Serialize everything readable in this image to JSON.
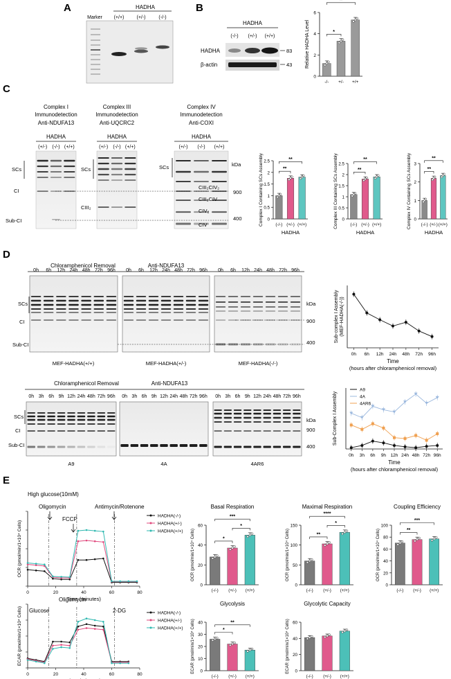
{
  "panels": {
    "A": {
      "letter": "A",
      "group": "HADHA",
      "marker": "Marker",
      "lanes": [
        "(+/+)",
        "(+/-)",
        "(-/-)"
      ]
    },
    "B": {
      "letter": "B",
      "group": "HADHA",
      "lanes": [
        "(-/-)",
        "(+/-)",
        "(+/+)"
      ],
      "rows": [
        "HADHA",
        "β-actin"
      ],
      "kda": [
        "83",
        "43"
      ],
      "chart": {
        "type": "bar",
        "ylabel": "Relative HADHA Level",
        "categories": [
          "-/-",
          "+/-",
          "+/+"
        ],
        "values": [
          1.2,
          3.3,
          5.3
        ],
        "ylim": [
          0,
          6
        ],
        "yticks": [
          "0",
          "2",
          "4",
          "6"
        ],
        "sig": [
          "*",
          "**"
        ],
        "colors": [
          "#9a9a9a",
          "#9a9a9a",
          "#9a9a9a"
        ]
      }
    },
    "C": {
      "letter": "C",
      "blots": [
        {
          "title1": "Complex I",
          "title2": "Immunodetection",
          "antibody": "Anti-NDUFA13",
          "group": "HADHA",
          "lanes": [
            "(+/-)",
            "(-/-)",
            "(+/+)"
          ]
        },
        {
          "title1": "Complex III",
          "title2": "Immunodetection",
          "antibody": "Anti-UQCRC2",
          "group": "HADHA",
          "lanes": [
            "(+/-)",
            "(-/-)",
            "(+/+)"
          ]
        },
        {
          "title1": "Complex IV",
          "title2": "Immunodetection",
          "antibody": "Anti-COXI",
          "group": "HADHA",
          "lanes": [
            "(+/-)",
            "(-/-)",
            "(+/+)"
          ]
        }
      ],
      "band_labels": {
        "scs": "SCs",
        "ci": "CI",
        "subci": "Sub-CI",
        "ciii2": "CIII₂",
        "ciii2civ2": "CIII₂CIV₂",
        "ciii2civ": "CIII₂CIV",
        "civ2": "CIV₂",
        "civ": "CIV"
      },
      "kda": {
        "unit": "kDa",
        "m900": "900",
        "m400": "400"
      },
      "charts": [
        {
          "type": "bar",
          "ylabel": "Complex I Containing SCs Assembly",
          "xlabel": "HADHA",
          "categories": [
            "(-/-)",
            "(+/-)",
            "(+/+)"
          ],
          "values": [
            1.0,
            1.75,
            1.8
          ],
          "ylim": [
            0,
            2.5
          ],
          "yticks": [
            "0",
            "0.5",
            "1",
            "1.5",
            "2",
            "2.5"
          ],
          "sig": [
            "**",
            "**"
          ],
          "colors": [
            "#8a8a8a",
            "#e05a8c",
            "#5ec6c0"
          ]
        },
        {
          "type": "bar",
          "ylabel": "Complex III Containing SCs Assembly",
          "xlabel": "HADHA",
          "categories": [
            "(-/-)",
            "(+/-)",
            "(+/+)"
          ],
          "values": [
            1.1,
            1.8,
            1.9
          ],
          "ylim": [
            0,
            2.5
          ],
          "yticks": [
            "0",
            "0.5",
            "1",
            "1.5",
            "2",
            "2.5"
          ],
          "sig": [
            "**",
            "**"
          ],
          "colors": [
            "#8a8a8a",
            "#e05a8c",
            "#5ec6c0"
          ]
        },
        {
          "type": "bar",
          "ylabel": "Complex IV Containing SCs Assembly",
          "xlabel": "HADHA",
          "categories": [
            "(-/-)",
            "(+/-)",
            "(+/+)"
          ],
          "values": [
            1.0,
            2.2,
            2.35
          ],
          "ylim": [
            0,
            3
          ],
          "yticks": [
            "0",
            "1",
            "2",
            "3"
          ],
          "sig": [
            "**",
            "**"
          ],
          "colors": [
            "#8a8a8a",
            "#e05a8c",
            "#5ec6c0"
          ]
        }
      ]
    },
    "D": {
      "letter": "D",
      "removal": "Chloramphenicol Removal",
      "antibody": "Anti-NDUFA13",
      "times1": [
        "0h",
        "6h",
        "12h",
        "24h",
        "48h",
        "72h",
        "96h"
      ],
      "times2": [
        "0h",
        "3h",
        "6h",
        "9h",
        "12h",
        "24h",
        "48h",
        "72h",
        "96h"
      ],
      "labels1": [
        "MEF-HADHA(+/+)",
        "MEF-HADHA(+/-)",
        "MEF-HADHA(-/-)"
      ],
      "labels2": [
        "A9",
        "4A",
        "4AR6"
      ],
      "band_labels": {
        "scs": "SCs",
        "ci": "CI",
        "subci": "Sub-CI"
      },
      "kda": {
        "unit": "kDa",
        "m900": "900",
        "m400": "400"
      },
      "chart1": {
        "type": "line",
        "ylabel": "Sub-complex I Assembly (MEF-HADHA(-/-))",
        "xlabel": "Time",
        "xlabel2": "(hours after chloramphenicol removal)",
        "categories": [
          "0h",
          "6h",
          "12h",
          "24h",
          "48h",
          "72h",
          "96h"
        ],
        "values": [
          8.6,
          5.6,
          4.5,
          3.5,
          4.1,
          2.7,
          1.8
        ],
        "ylim": [
          0,
          10
        ]
      },
      "chart2": {
        "type": "line",
        "ylabel": "Sub-Complex I Assembly",
        "xlabel": "Time",
        "xlabel2": "(hours after chloramphenicol removal)",
        "categories": [
          "0h",
          "3h",
          "6h",
          "9h",
          "12h",
          "24h",
          "48h",
          "72h",
          "96h"
        ],
        "ylim": [
          0,
          14
        ],
        "series": [
          {
            "name": "A9",
            "color": "#111111",
            "values": [
              0.3,
              0.8,
              1.8,
              1.4,
              0.8,
              0.5,
              0.3,
              0.6,
              0.8
            ]
          },
          {
            "name": "4A",
            "color": "#9bb8de",
            "values": [
              8.2,
              7.2,
              9.8,
              9.0,
              8.5,
              10.8,
              12.6,
              10.5,
              11.8
            ]
          },
          {
            "name": "4AR6",
            "color": "#f0a050",
            "values": [
              5.5,
              4.5,
              5.8,
              4.8,
              2.6,
              2.4,
              3.1,
              2.0,
              3.5
            ]
          }
        ]
      }
    },
    "E": {
      "letter": "E",
      "condition": "High glucose(10mM)",
      "ocr_trace": {
        "type": "line",
        "ylabel": "OCR (pmol/min/1×10⁴ Cells)",
        "xlabel": "Time (minutes)",
        "xticks": [
          "0",
          "20",
          "40",
          "60",
          "80"
        ],
        "xlim": [
          0,
          80
        ],
        "yticks": [
          "0",
          "50",
          "100",
          "150",
          "200"
        ],
        "ylim": [
          0,
          200
        ],
        "injections": [
          "Oligomycin",
          "FCCP",
          "Antimycin/Rotenone"
        ],
        "x": [
          0,
          6,
          12,
          18,
          24,
          30,
          36,
          42,
          48,
          54,
          60,
          66,
          72,
          78
        ],
        "series": [
          {
            "name": "HADHA(-/-)",
            "color": "#111111",
            "values": [
              44,
              42,
              40,
              20,
              18,
              18,
              70,
              70,
              72,
              74,
              10,
              10,
              10,
              10
            ]
          },
          {
            "name": "HADHA(+/-)",
            "color": "#e0487c",
            "values": [
              58,
              56,
              54,
              24,
              22,
              22,
              120,
              122,
              120,
              118,
              12,
              12,
              12,
              12
            ]
          },
          {
            "name": "HADHA(+/+)",
            "color": "#2fb8b0",
            "values": [
              62,
              60,
              58,
              26,
              25,
              24,
              148,
              150,
              148,
              146,
              13,
              13,
              13,
              13
            ]
          }
        ]
      },
      "ecar_trace": {
        "type": "line",
        "ylabel": "ECAR (pmol/min/1×10⁴ Cells)",
        "xlabel": "Time (minutes)",
        "xticks": [
          "0",
          "20",
          "40",
          "60",
          "80"
        ],
        "xlim": [
          0,
          80
        ],
        "yticks": [
          "0",
          "20",
          "40",
          "60",
          "80"
        ],
        "ylim": [
          0,
          80
        ],
        "injections": [
          "Glucose",
          "Oligomycin",
          "2-DG"
        ],
        "x": [
          0,
          6,
          12,
          18,
          24,
          30,
          36,
          42,
          48,
          54,
          60,
          66,
          72
        ],
        "series": [
          {
            "name": "HADHA(-/-)",
            "color": "#111111",
            "values": [
              12,
              10,
              8,
              33,
              33,
              32,
              52,
              55,
              53,
              52,
              8,
              8,
              8
            ]
          },
          {
            "name": "HADHA(+/-)",
            "color": "#e0487c",
            "values": [
              11,
              9,
              7,
              28,
              29,
              28,
              48,
              50,
              49,
              48,
              7,
              7,
              7
            ]
          },
          {
            "name": "HADHA(+/+)",
            "color": "#2fb8b0",
            "values": [
              10,
              8,
              6,
              24,
              26,
              25,
              58,
              62,
              60,
              58,
              6,
              6,
              6
            ]
          }
        ]
      },
      "bars": [
        {
          "title": "Basal Respiration",
          "ylabel": "OCR (pmol/min/1×10⁴ Cells)",
          "values": [
            28,
            37,
            50
          ],
          "ylim": [
            0,
            60
          ],
          "yticks": [
            "0",
            "20",
            "40",
            "60"
          ],
          "sig": [
            "***",
            "*",
            "*"
          ]
        },
        {
          "title": "Maximal Respiration",
          "ylabel": "OCR (pmol/min/1×10⁴ Cells)",
          "values": [
            60,
            103,
            132
          ],
          "ylim": [
            0,
            150
          ],
          "yticks": [
            "0",
            "50",
            "100",
            "150"
          ],
          "sig": [
            "****",
            "**",
            "*"
          ]
        },
        {
          "title": "Coupling Efficiency",
          "ylabel": "OCR (pmol/min/1×10⁴ Cells)",
          "values": [
            70,
            76,
            77
          ],
          "ylim": [
            0,
            100
          ],
          "yticks": [
            "0",
            "20",
            "40",
            "60",
            "80",
            "100"
          ],
          "sig": [
            "***",
            "**",
            ""
          ]
        },
        {
          "title": "Glycolysis",
          "ylabel": "ECAR (pmol/min/1×10⁴ Cells)",
          "values": [
            26,
            22,
            17
          ],
          "ylim": [
            0,
            40
          ],
          "yticks": [
            "0",
            "10",
            "20",
            "30",
            "40"
          ],
          "sig": [
            "**",
            "*",
            ""
          ]
        },
        {
          "title": "Glycolytic Capacity",
          "ylabel": "ECAR (pmol/min/1×10⁴ Cells)",
          "values": [
            41,
            43,
            49
          ],
          "ylim": [
            0,
            60
          ],
          "yticks": [
            "0",
            "20",
            "40",
            "60"
          ],
          "sig": [
            "",
            "",
            ""
          ]
        }
      ],
      "bar_categories": [
        "(-/-)",
        "(+/-)",
        "(+/+)"
      ],
      "bar_colors": [
        "#7a7a7a",
        "#e05a8c",
        "#4cc0b8"
      ]
    }
  }
}
